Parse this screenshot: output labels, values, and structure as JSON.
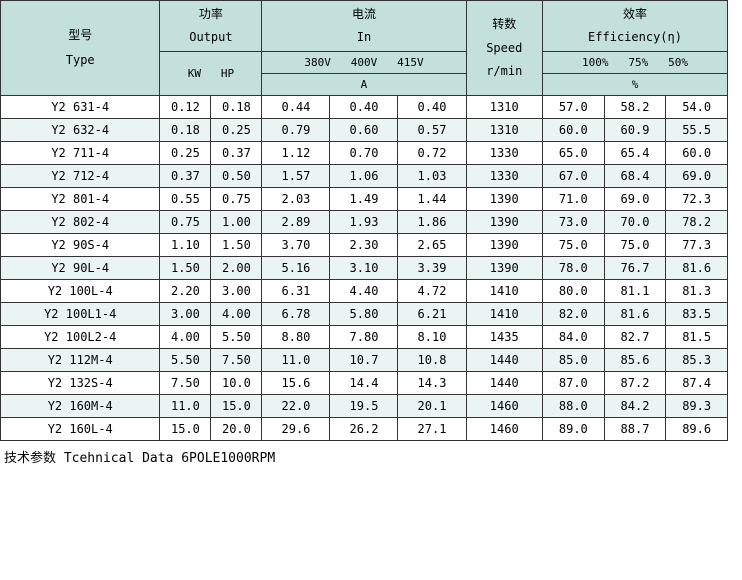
{
  "colors": {
    "header_bg": "#c4e0dc",
    "row_odd_bg": "#ffffff",
    "row_even_bg": "#eaf5f3",
    "border": "#333333",
    "text": "#000000"
  },
  "header": {
    "type_cn": "型号",
    "type_en": "Type",
    "output_cn": "功率",
    "output_en": "Output",
    "current_cn": "电流",
    "current_en": "In",
    "speed_cn": "转数",
    "speed_en": "Speed",
    "speed_unit": "r/min",
    "efficiency_cn": "效率",
    "efficiency_en": "Efficiency(η)",
    "kw": "KW",
    "hp": "HP",
    "v380": "380V",
    "v400": "400V",
    "v415": "415V",
    "voltage_line": "380V  400V  415V",
    "amp": "A",
    "eff100": "100%",
    "eff75": "75%",
    "eff50": "50%",
    "eff_line": "100%  75%  50%",
    "percent": "%"
  },
  "rows": [
    {
      "type": "Y2 631-4",
      "kw": "0.12",
      "hp": "0.18",
      "a380": "0.44",
      "a400": "0.40",
      "a415": "0.40",
      "speed": "1310",
      "e100": "57.0",
      "e75": "58.2",
      "e50": "54.0"
    },
    {
      "type": "Y2 632-4",
      "kw": "0.18",
      "hp": "0.25",
      "a380": "0.79",
      "a400": "0.60",
      "a415": "0.57",
      "speed": "1310",
      "e100": "60.0",
      "e75": "60.9",
      "e50": "55.5"
    },
    {
      "type": "Y2 711-4",
      "kw": "0.25",
      "hp": "0.37",
      "a380": "1.12",
      "a400": "0.70",
      "a415": "0.72",
      "speed": "1330",
      "e100": "65.0",
      "e75": "65.4",
      "e50": "60.0"
    },
    {
      "type": "Y2 712-4",
      "kw": "0.37",
      "hp": "0.50",
      "a380": "1.57",
      "a400": "1.06",
      "a415": "1.03",
      "speed": "1330",
      "e100": "67.0",
      "e75": "68.4",
      "e50": "69.0"
    },
    {
      "type": "Y2 801-4",
      "kw": "0.55",
      "hp": "0.75",
      "a380": "2.03",
      "a400": "1.49",
      "a415": "1.44",
      "speed": "1390",
      "e100": "71.0",
      "e75": "69.0",
      "e50": "72.3"
    },
    {
      "type": "Y2 802-4",
      "kw": "0.75",
      "hp": "1.00",
      "a380": "2.89",
      "a400": "1.93",
      "a415": "1.86",
      "speed": "1390",
      "e100": "73.0",
      "e75": "70.0",
      "e50": "78.2"
    },
    {
      "type": "Y2 90S-4",
      "kw": "1.10",
      "hp": "1.50",
      "a380": "3.70",
      "a400": "2.30",
      "a415": "2.65",
      "speed": "1390",
      "e100": "75.0",
      "e75": "75.0",
      "e50": "77.3"
    },
    {
      "type": "Y2 90L-4",
      "kw": "1.50",
      "hp": "2.00",
      "a380": "5.16",
      "a400": "3.10",
      "a415": "3.39",
      "speed": "1390",
      "e100": "78.0",
      "e75": "76.7",
      "e50": "81.6"
    },
    {
      "type": "Y2 100L-4",
      "kw": "2.20",
      "hp": "3.00",
      "a380": "6.31",
      "a400": "4.40",
      "a415": "4.72",
      "speed": "1410",
      "e100": "80.0",
      "e75": "81.1",
      "e50": "81.3"
    },
    {
      "type": "Y2 100L1-4",
      "kw": "3.00",
      "hp": "4.00",
      "a380": "6.78",
      "a400": "5.80",
      "a415": "6.21",
      "speed": "1410",
      "e100": "82.0",
      "e75": "81.6",
      "e50": "83.5"
    },
    {
      "type": "Y2 100L2-4",
      "kw": "4.00",
      "hp": "5.50",
      "a380": "8.80",
      "a400": "7.80",
      "a415": "8.10",
      "speed": "1435",
      "e100": "84.0",
      "e75": "82.7",
      "e50": "81.5"
    },
    {
      "type": "Y2 112M-4",
      "kw": "5.50",
      "hp": "7.50",
      "a380": "11.0",
      "a400": "10.7",
      "a415": "10.8",
      "speed": "1440",
      "e100": "85.0",
      "e75": "85.6",
      "e50": "85.3"
    },
    {
      "type": "Y2 132S-4",
      "kw": "7.50",
      "hp": "10.0",
      "a380": "15.6",
      "a400": "14.4",
      "a415": "14.3",
      "speed": "1440",
      "e100": "87.0",
      "e75": "87.2",
      "e50": "87.4"
    },
    {
      "type": "Y2 160M-4",
      "kw": "11.0",
      "hp": "15.0",
      "a380": "22.0",
      "a400": "19.5",
      "a415": "20.1",
      "speed": "1460",
      "e100": "88.0",
      "e75": "84.2",
      "e50": "89.3"
    },
    {
      "type": "Y2 160L-4",
      "kw": "15.0",
      "hp": "20.0",
      "a380": "29.6",
      "a400": "26.2",
      "a415": "27.1",
      "speed": "1460",
      "e100": "89.0",
      "e75": "88.7",
      "e50": "89.6"
    }
  ],
  "footer": "技术参数 Tcehnical Data 6POLE1000RPM"
}
